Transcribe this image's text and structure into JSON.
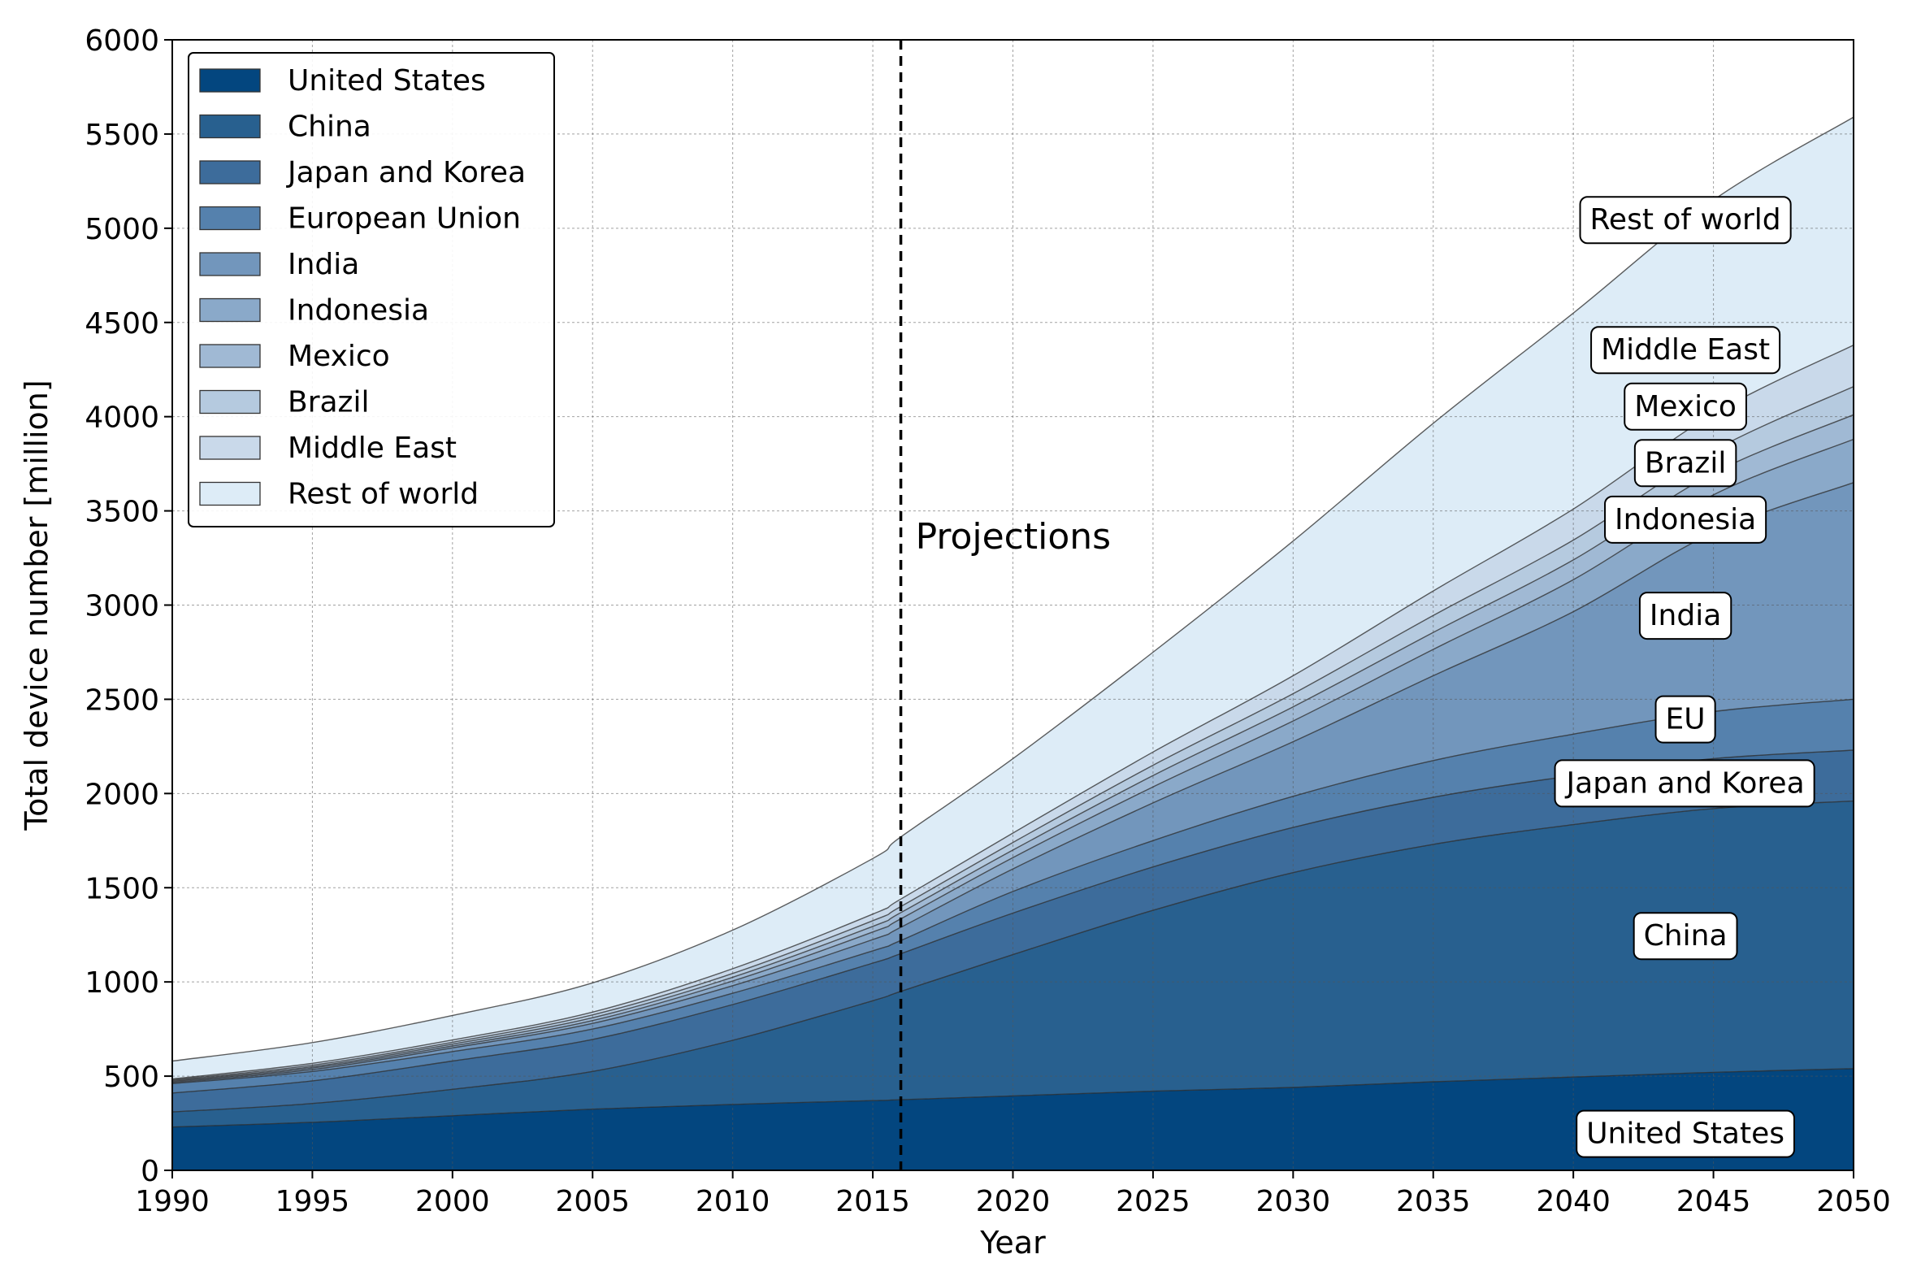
{
  "chart_data": {
    "type": "area",
    "stacked": true,
    "title": "",
    "xlabel": "Year",
    "ylabel": "Total device number [million]",
    "xlim": [
      1990,
      2050
    ],
    "ylim": [
      0,
      6000
    ],
    "xticks": [
      1990,
      1995,
      2000,
      2005,
      2010,
      2015,
      2020,
      2025,
      2030,
      2035,
      2040,
      2045,
      2050
    ],
    "yticks": [
      0,
      500,
      1000,
      1500,
      2000,
      2500,
      3000,
      3500,
      4000,
      4500,
      5000,
      5500,
      6000
    ],
    "grid": true,
    "legend_position": "top-left",
    "projection_year": 2016,
    "projection_label": "Projections",
    "x": [
      1990,
      1995,
      2000,
      2005,
      2010,
      2015,
      2016,
      2020,
      2025,
      2030,
      2035,
      2040,
      2045,
      2050
    ],
    "series": [
      {
        "name": "United States",
        "label": "United States",
        "color": "#03467f",
        "values": [
          230,
          255,
          290,
          325,
          350,
          370,
          375,
          395,
          420,
          440,
          470,
          495,
          520,
          540
        ]
      },
      {
        "name": "China",
        "label": "China",
        "color": "#28608f",
        "values": [
          80,
          100,
          140,
          200,
          340,
          530,
          575,
          750,
          960,
          1140,
          1260,
          1340,
          1400,
          1420
        ]
      },
      {
        "name": "Japan and Korea",
        "label": "Japan and Korea",
        "color": "#3d6c9b",
        "values": [
          100,
          120,
          150,
          170,
          190,
          200,
          200,
          220,
          230,
          240,
          250,
          260,
          265,
          270
        ]
      },
      {
        "name": "European Union",
        "label": "EU",
        "color": "#5581ad",
        "values": [
          50,
          50,
          50,
          55,
          60,
          65,
          70,
          115,
          140,
          165,
          195,
          220,
          250,
          270
        ]
      },
      {
        "name": "India",
        "label": "India",
        "color": "#7296bc",
        "values": [
          5,
          10,
          20,
          30,
          40,
          60,
          70,
          120,
          200,
          290,
          450,
          650,
          950,
          1150
        ]
      },
      {
        "name": "Indonesia",
        "label": "Indonesia",
        "color": "#8aa9c9",
        "values": [
          5,
          8,
          10,
          15,
          25,
          40,
          45,
          60,
          85,
          110,
          140,
          170,
          200,
          230
        ]
      },
      {
        "name": "Mexico",
        "label": "Mexico",
        "color": "#a0b9d4",
        "values": [
          5,
          7,
          10,
          15,
          20,
          30,
          33,
          40,
          60,
          75,
          90,
          105,
          115,
          130
        ]
      },
      {
        "name": "Brazil",
        "label": "Brazil",
        "color": "#b5cadf",
        "values": [
          5,
          8,
          10,
          15,
          20,
          30,
          32,
          40,
          55,
          70,
          90,
          105,
          120,
          150
        ]
      },
      {
        "name": "Middle East",
        "label": "Middle East",
        "color": "#c9d9ea",
        "values": [
          5,
          10,
          12,
          15,
          25,
          35,
          40,
          50,
          70,
          95,
          130,
          165,
          195,
          220
        ]
      },
      {
        "name": "Rest of world",
        "label": "Rest of world",
        "color": "#ddecf7",
        "values": [
          95,
          110,
          130,
          155,
          205,
          295,
          330,
          395,
          530,
          715,
          890,
          1040,
          1135,
          1210
        ]
      }
    ]
  }
}
